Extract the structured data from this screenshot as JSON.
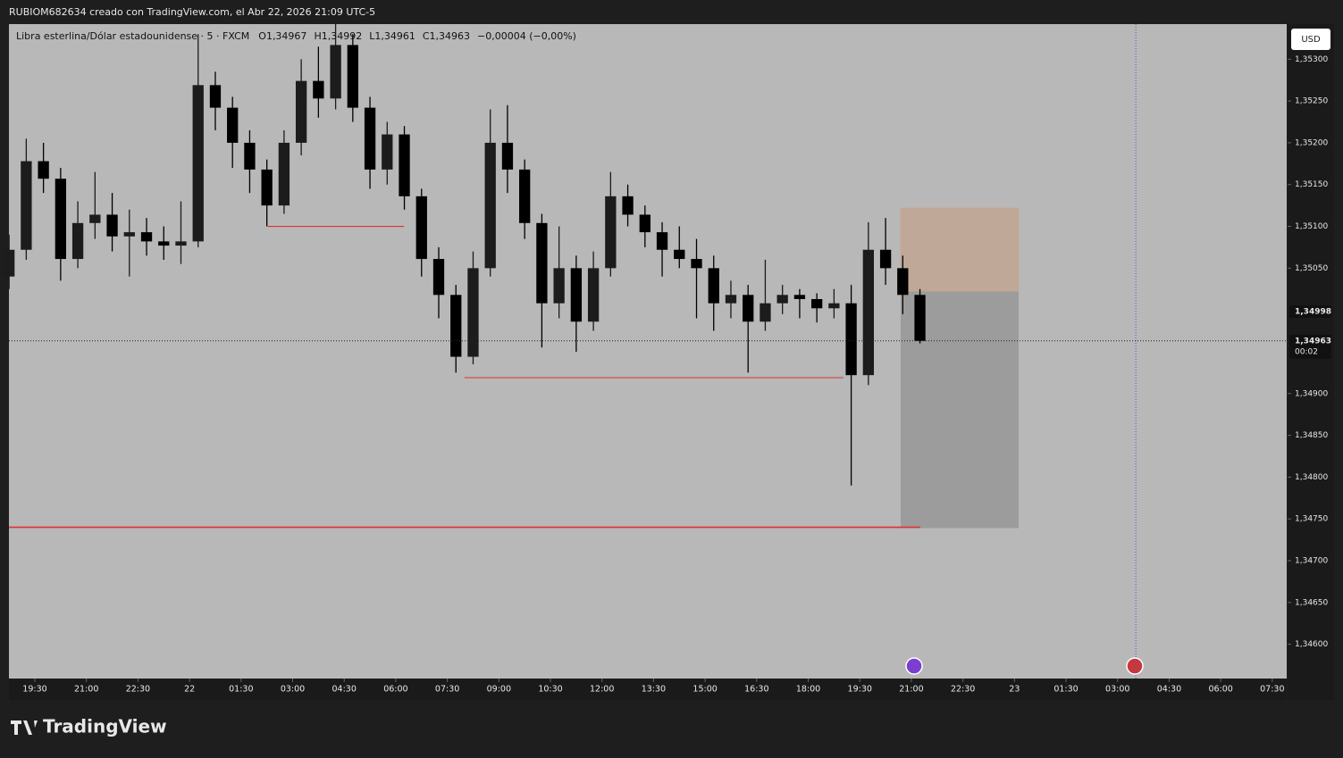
{
  "header": "RUBIOM682634 creado con TradingView.com, el Abr 22, 2026 21:09 UTC-5",
  "brand": "TradingView",
  "chart_data": {
    "type": "candlestick",
    "title": "Libra esterlina/Dólar estadounidense · 5 · FXCM",
    "ohlc_legend": [
      "O1,34967",
      "H1,34992",
      "L1,34961",
      "C1,34963",
      "−0,00004 (−0,00%)"
    ],
    "currency": "USD",
    "up_color": "#1c1c1c",
    "down_color": "#000000",
    "background": "#b8b8b8",
    "x": [
      -0.75,
      -0.25,
      0.25,
      0.75,
      1.25,
      1.75,
      2.25,
      2.75,
      3.25,
      3.75,
      4.25,
      4.75,
      5.25,
      5.75,
      6.25,
      6.75,
      7.25,
      7.75,
      8.25,
      8.75,
      9.25,
      9.75,
      10.25,
      10.75,
      11.25,
      11.75,
      12.25,
      12.75,
      13.25,
      13.75,
      14.25,
      14.75,
      15.25,
      15.75,
      16.25,
      16.75,
      17.25,
      17.75,
      18.25,
      18.75,
      19.25,
      19.75,
      20.25,
      20.75,
      21.25,
      21.75,
      22.25,
      22.75,
      23.25,
      23.75,
      24.25,
      24.75,
      25.25,
      25.75
    ],
    "open": [
      1.3504,
      1.35072,
      1.35178,
      1.35157,
      1.35061,
      1.35104,
      1.35114,
      1.35088,
      1.35093,
      1.35082,
      1.35077,
      1.35082,
      1.35269,
      1.35242,
      1.352,
      1.35168,
      1.35125,
      1.352,
      1.35274,
      1.35253,
      1.35317,
      1.35242,
      1.35168,
      1.3521,
      1.35136,
      1.35061,
      1.35018,
      1.34944,
      1.3505,
      1.352,
      1.35168,
      1.35104,
      1.35008,
      1.3505,
      1.34986,
      1.3505,
      1.35136,
      1.35114,
      1.35093,
      1.35072,
      1.35061,
      1.3505,
      1.35008,
      1.35018,
      1.34986,
      1.35008,
      1.35018,
      1.35013,
      1.35002,
      1.35008,
      1.34922,
      1.35072,
      1.3505,
      1.35018
    ],
    "high": [
      1.3509,
      1.35205,
      1.352,
      1.3517,
      1.3513,
      1.35165,
      1.3514,
      1.3512,
      1.3511,
      1.351,
      1.3513,
      1.3533,
      1.35285,
      1.35255,
      1.35215,
      1.3518,
      1.35215,
      1.353,
      1.35315,
      1.35345,
      1.3533,
      1.35255,
      1.35225,
      1.3522,
      1.35145,
      1.35075,
      1.3503,
      1.3507,
      1.3524,
      1.35245,
      1.3518,
      1.35115,
      1.351,
      1.35065,
      1.3507,
      1.35165,
      1.3515,
      1.35125,
      1.35105,
      1.351,
      1.35085,
      1.35065,
      1.35035,
      1.3503,
      1.3506,
      1.3503,
      1.35025,
      1.3502,
      1.35025,
      1.3503,
      1.35105,
      1.3511,
      1.35065,
      1.35025
    ],
    "low": [
      1.35025,
      1.3506,
      1.3514,
      1.35035,
      1.3505,
      1.35085,
      1.3507,
      1.3504,
      1.35065,
      1.3506,
      1.35055,
      1.35075,
      1.35215,
      1.3517,
      1.3514,
      1.351,
      1.35115,
      1.35185,
      1.3523,
      1.3524,
      1.35225,
      1.35145,
      1.3515,
      1.3512,
      1.3504,
      1.3499,
      1.34925,
      1.34935,
      1.3504,
      1.3514,
      1.35085,
      1.34955,
      1.3499,
      1.3495,
      1.34975,
      1.3504,
      1.351,
      1.35075,
      1.3504,
      1.3505,
      1.3499,
      1.34975,
      1.3499,
      1.34925,
      1.34975,
      1.34995,
      1.3499,
      1.34985,
      1.3499,
      1.3479,
      1.3491,
      1.3503,
      1.34995,
      1.3496
    ],
    "close": [
      1.35072,
      1.35178,
      1.35157,
      1.35061,
      1.35104,
      1.35114,
      1.35088,
      1.35093,
      1.35082,
      1.35077,
      1.35082,
      1.35269,
      1.35242,
      1.352,
      1.35168,
      1.35125,
      1.352,
      1.35274,
      1.35253,
      1.35317,
      1.35242,
      1.35168,
      1.3521,
      1.35136,
      1.35061,
      1.35018,
      1.34944,
      1.3505,
      1.352,
      1.35168,
      1.35104,
      1.35008,
      1.3505,
      1.34986,
      1.3505,
      1.35136,
      1.35114,
      1.35093,
      1.35072,
      1.35061,
      1.3505,
      1.35008,
      1.35018,
      1.34986,
      1.35008,
      1.35018,
      1.35013,
      1.35002,
      1.35008,
      1.34922,
      1.35072,
      1.3505,
      1.35018,
      1.34963
    ],
    "xlim": [
      -0.754,
      36.42
    ],
    "ylim": [
      1.34559,
      1.35342
    ],
    "xticks": [
      {
        "value": 0,
        "label": "19:30"
      },
      {
        "value": 1.5,
        "label": "21:00"
      },
      {
        "value": 3,
        "label": "22:30"
      },
      {
        "value": 4.5,
        "label": "22"
      },
      {
        "value": 6,
        "label": "01:30"
      },
      {
        "value": 7.5,
        "label": "03:00"
      },
      {
        "value": 9,
        "label": "04:30"
      },
      {
        "value": 10.5,
        "label": "06:00"
      },
      {
        "value": 12,
        "label": "07:30"
      },
      {
        "value": 13.5,
        "label": "09:00"
      },
      {
        "value": 15,
        "label": "10:30"
      },
      {
        "value": 16.5,
        "label": "12:00"
      },
      {
        "value": 18,
        "label": "13:30"
      },
      {
        "value": 19.5,
        "label": "15:00"
      },
      {
        "value": 21,
        "label": "16:30"
      },
      {
        "value": 22.5,
        "label": "18:00"
      },
      {
        "value": 24,
        "label": "19:30"
      },
      {
        "value": 25.5,
        "label": "21:00"
      },
      {
        "value": 27,
        "label": "22:30"
      },
      {
        "value": 28.5,
        "label": "23"
      },
      {
        "value": 30,
        "label": "01:30"
      },
      {
        "value": 31.5,
        "label": "03:00"
      },
      {
        "value": 33,
        "label": "04:30"
      },
      {
        "value": 34.5,
        "label": "06:00"
      },
      {
        "value": 36,
        "label": "07:30"
      }
    ],
    "yticks": [
      {
        "value": 1.353,
        "label": "1,35300"
      },
      {
        "value": 1.3525,
        "label": "1,35250"
      },
      {
        "value": 1.352,
        "label": "1,35200"
      },
      {
        "value": 1.3515,
        "label": "1,35150"
      },
      {
        "value": 1.351,
        "label": "1,35100"
      },
      {
        "value": 1.3505,
        "label": "1,35050"
      },
      {
        "value": 1.349,
        "label": "1,34900"
      },
      {
        "value": 1.3485,
        "label": "1,34850"
      },
      {
        "value": 1.348,
        "label": "1,34800"
      },
      {
        "value": 1.3475,
        "label": "1,34750"
      },
      {
        "value": 1.347,
        "label": "1,34700"
      },
      {
        "value": 1.3465,
        "label": "1,34650"
      },
      {
        "value": 1.346,
        "label": "1,34600"
      }
    ],
    "price_labels": [
      {
        "value": 1.34998,
        "label": "1,34998"
      },
      {
        "value": 1.34963,
        "label": "1,34963"
      }
    ],
    "countdown": "00:02",
    "levels": [
      {
        "price": 1.351,
        "x": [
          6.78,
          10.74
        ],
        "color": "#e03030"
      },
      {
        "price": 1.34919,
        "x": [
          12.5,
          23.52
        ],
        "color": "#e03030"
      },
      {
        "price": 1.3474,
        "x": [
          -0.754,
          25.76
        ],
        "color": "#e03030"
      }
    ],
    "position": {
      "x": [
        25.19,
        28.62
      ],
      "top": 1.35122,
      "entry": 1.35022,
      "bottom": 1.34739
    },
    "session_marker": 32.03
  }
}
